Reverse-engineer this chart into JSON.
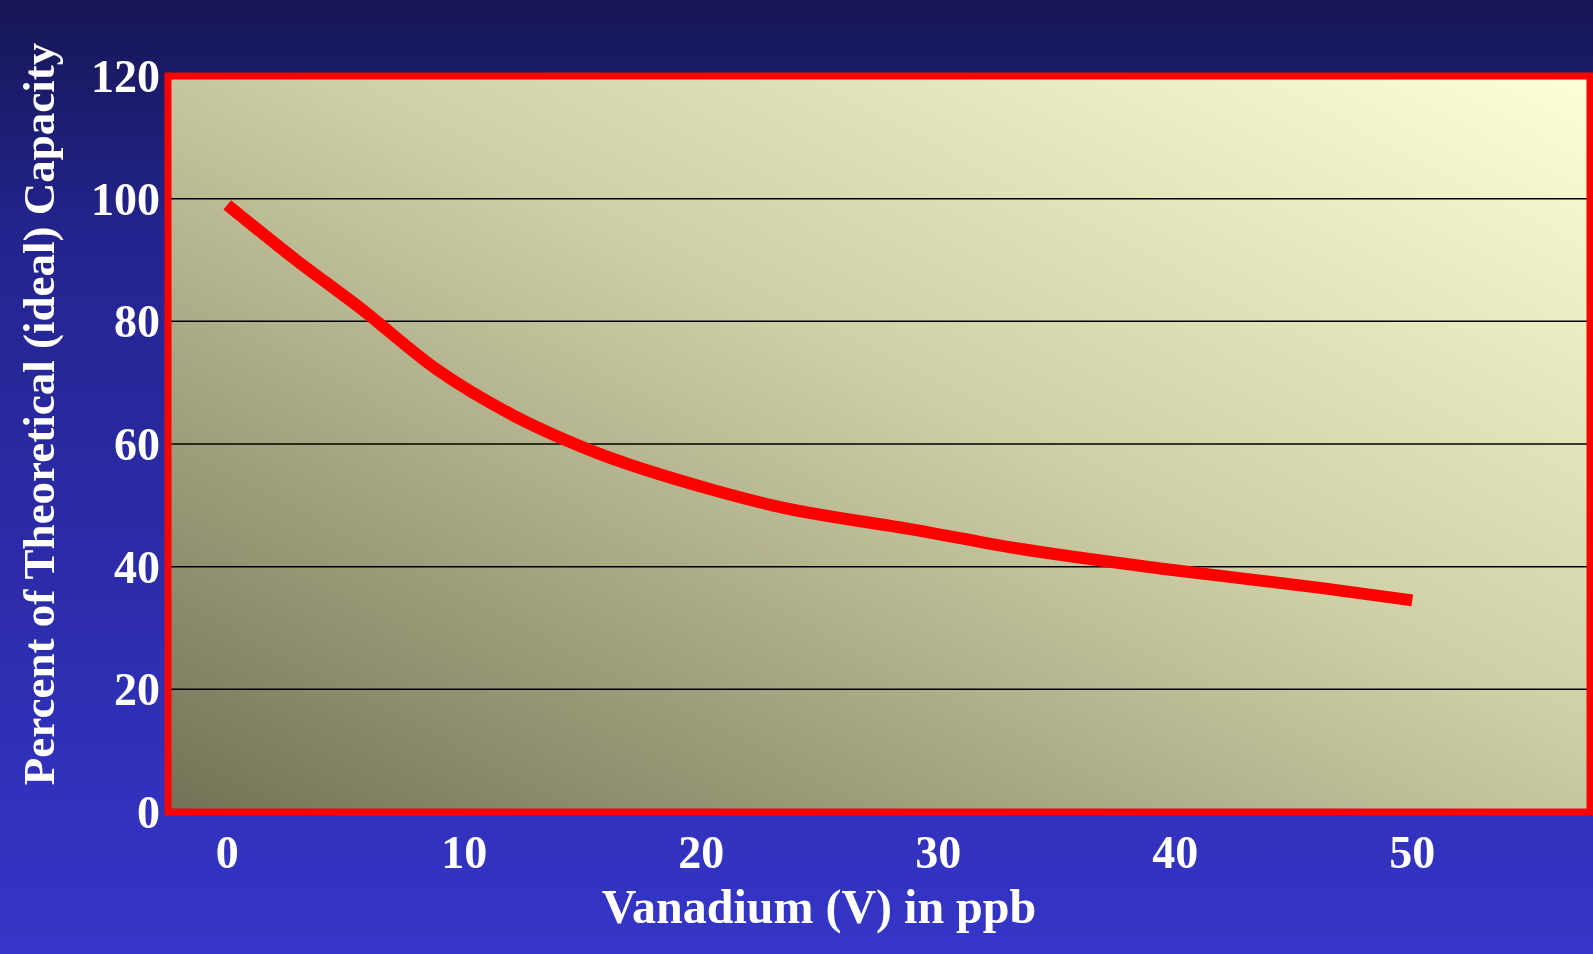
{
  "chart_data": {
    "type": "line",
    "xlabel": "Vanadium (V) in ppb",
    "ylabel": "Percent of Theoretical (ideal) Capacity",
    "x": [
      0,
      2.9,
      5.5,
      8.9,
      11.9,
      15.3,
      20.5,
      23,
      29,
      33.3,
      39.8,
      46.2,
      50
    ],
    "series": [
      {
        "color": "#ff0000",
        "values": [
          99,
          90,
          82.5,
          72,
          65,
          59,
          52.5,
          50,
          46,
          43,
          39.5,
          36.5,
          34.5
        ]
      }
    ],
    "xlim": [
      -2.5,
      57.5
    ],
    "xticks": [
      0,
      10,
      20,
      30,
      40,
      50
    ],
    "ylim": [
      0,
      120
    ],
    "yticks": [
      0,
      20,
      40,
      60,
      80,
      100,
      120
    ],
    "grid": "y",
    "marker": "none",
    "line_style": "solid"
  }
}
